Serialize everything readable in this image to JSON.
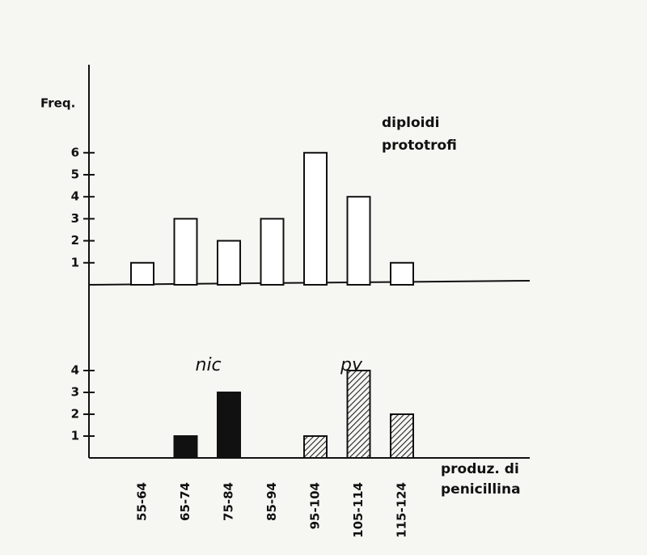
{
  "chart_data": [
    {
      "type": "bar",
      "ylabel": "Freq.",
      "annotation": [
        "diploidi",
        "prototrofi"
      ],
      "values": [
        1,
        3,
        2,
        3,
        6,
        4,
        1
      ],
      "color": "#ffffff",
      "ylim": [
        0,
        10
      ],
      "yticks": [
        1,
        2,
        3,
        4,
        5,
        6
      ]
    },
    {
      "type": "bar",
      "categories": [
        "55-64",
        "65-74",
        "75-84",
        "85-94",
        "95-104",
        "105-114",
        "115-124"
      ],
      "series": [
        {
          "name": "nic",
          "color": "#111111",
          "hatch": false,
          "values": [
            null,
            1,
            3,
            null,
            null,
            null,
            null
          ]
        },
        {
          "name": "py",
          "color": "#222222",
          "hatch": true,
          "values": [
            null,
            null,
            null,
            null,
            1,
            4,
            2
          ]
        }
      ],
      "xlabel": [
        "produz. di",
        "penicillina"
      ],
      "ylim": [
        0,
        8
      ],
      "yticks": [
        1,
        2,
        3,
        4
      ]
    }
  ]
}
